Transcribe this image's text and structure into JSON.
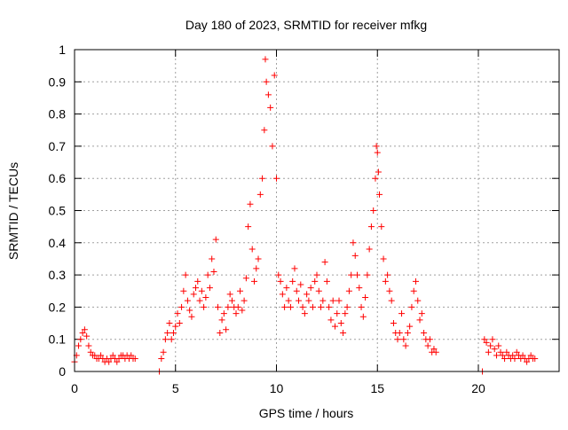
{
  "chart_data": {
    "type": "scatter",
    "title": "Day 180 of 2023, SRMTID for receiver mfkg",
    "xlabel": "GPS time / hours",
    "ylabel": "SRMTID / TECUs",
    "xlim": [
      0,
      24
    ],
    "ylim": [
      0,
      1
    ],
    "x_ticks": [
      0,
      5,
      10,
      15,
      20
    ],
    "x_tick_labels": [
      "0",
      "5",
      "10",
      "15",
      "20"
    ],
    "y_ticks": [
      0,
      0.1,
      0.2,
      0.3,
      0.4,
      0.5,
      0.6,
      0.7,
      0.8,
      0.9,
      1
    ],
    "y_tick_labels": [
      "0",
      "0.1",
      "0.2",
      "0.3",
      "0.4",
      "0.5",
      "0.6",
      "0.7",
      "0.8",
      "0.9",
      "1"
    ],
    "grid": true,
    "marker": "+",
    "marker_color": "#ff0000",
    "series": [
      {
        "name": "SRMTID",
        "points": [
          [
            0.0,
            0.03
          ],
          [
            0.1,
            0.05
          ],
          [
            0.2,
            0.08
          ],
          [
            0.3,
            0.1
          ],
          [
            0.4,
            0.12
          ],
          [
            0.5,
            0.13
          ],
          [
            0.6,
            0.11
          ],
          [
            0.7,
            0.08
          ],
          [
            0.8,
            0.06
          ],
          [
            0.9,
            0.05
          ],
          [
            1.0,
            0.05
          ],
          [
            1.1,
            0.04
          ],
          [
            1.2,
            0.04
          ],
          [
            1.3,
            0.05
          ],
          [
            1.4,
            0.04
          ],
          [
            1.5,
            0.03
          ],
          [
            1.6,
            0.04
          ],
          [
            1.7,
            0.03
          ],
          [
            1.8,
            0.04
          ],
          [
            1.9,
            0.05
          ],
          [
            2.0,
            0.04
          ],
          [
            2.1,
            0.03
          ],
          [
            2.2,
            0.04
          ],
          [
            2.3,
            0.05
          ],
          [
            2.4,
            0.05
          ],
          [
            2.5,
            0.04
          ],
          [
            2.6,
            0.05
          ],
          [
            2.7,
            0.04
          ],
          [
            2.8,
            0.05
          ],
          [
            2.9,
            0.04
          ],
          [
            3.0,
            0.04
          ],
          [
            4.2,
            0.0
          ],
          [
            4.3,
            0.04
          ],
          [
            4.4,
            0.06
          ],
          [
            4.5,
            0.1
          ],
          [
            4.6,
            0.12
          ],
          [
            4.7,
            0.15
          ],
          [
            4.8,
            0.1
          ],
          [
            4.9,
            0.12
          ],
          [
            5.0,
            0.14
          ],
          [
            5.1,
            0.18
          ],
          [
            5.2,
            0.15
          ],
          [
            5.3,
            0.2
          ],
          [
            5.4,
            0.25
          ],
          [
            5.5,
            0.3
          ],
          [
            5.6,
            0.22
          ],
          [
            5.7,
            0.19
          ],
          [
            5.8,
            0.17
          ],
          [
            5.9,
            0.24
          ],
          [
            6.0,
            0.26
          ],
          [
            6.1,
            0.28
          ],
          [
            6.2,
            0.22
          ],
          [
            6.3,
            0.25
          ],
          [
            6.4,
            0.2
          ],
          [
            6.5,
            0.23
          ],
          [
            6.6,
            0.3
          ],
          [
            6.7,
            0.26
          ],
          [
            6.8,
            0.35
          ],
          [
            6.9,
            0.31
          ],
          [
            7.0,
            0.41
          ],
          [
            7.1,
            0.2
          ],
          [
            7.2,
            0.12
          ],
          [
            7.3,
            0.16
          ],
          [
            7.4,
            0.18
          ],
          [
            7.5,
            0.13
          ],
          [
            7.6,
            0.2
          ],
          [
            7.7,
            0.24
          ],
          [
            7.8,
            0.22
          ],
          [
            7.9,
            0.2
          ],
          [
            8.0,
            0.18
          ],
          [
            8.1,
            0.2
          ],
          [
            8.2,
            0.25
          ],
          [
            8.3,
            0.19
          ],
          [
            8.4,
            0.22
          ],
          [
            8.5,
            0.29
          ],
          [
            8.6,
            0.45
          ],
          [
            8.7,
            0.52
          ],
          [
            8.8,
            0.38
          ],
          [
            8.9,
            0.28
          ],
          [
            9.0,
            0.32
          ],
          [
            9.1,
            0.35
          ],
          [
            9.2,
            0.55
          ],
          [
            9.3,
            0.6
          ],
          [
            9.4,
            0.75
          ],
          [
            9.45,
            0.97
          ],
          [
            9.5,
            0.9
          ],
          [
            9.6,
            0.86
          ],
          [
            9.7,
            0.82
          ],
          [
            9.8,
            0.7
          ],
          [
            9.9,
            0.92
          ],
          [
            10.0,
            0.6
          ],
          [
            10.1,
            0.3
          ],
          [
            10.2,
            0.28
          ],
          [
            10.3,
            0.24
          ],
          [
            10.4,
            0.2
          ],
          [
            10.5,
            0.26
          ],
          [
            10.6,
            0.22
          ],
          [
            10.7,
            0.2
          ],
          [
            10.8,
            0.28
          ],
          [
            10.9,
            0.32
          ],
          [
            11.0,
            0.25
          ],
          [
            11.1,
            0.22
          ],
          [
            11.2,
            0.27
          ],
          [
            11.3,
            0.2
          ],
          [
            11.4,
            0.18
          ],
          [
            11.5,
            0.24
          ],
          [
            11.6,
            0.22
          ],
          [
            11.7,
            0.26
          ],
          [
            11.8,
            0.2
          ],
          [
            11.9,
            0.28
          ],
          [
            12.0,
            0.3
          ],
          [
            12.1,
            0.25
          ],
          [
            12.2,
            0.2
          ],
          [
            12.3,
            0.22
          ],
          [
            12.4,
            0.34
          ],
          [
            12.5,
            0.28
          ],
          [
            12.6,
            0.2
          ],
          [
            12.7,
            0.16
          ],
          [
            12.8,
            0.22
          ],
          [
            12.9,
            0.14
          ],
          [
            13.0,
            0.18
          ],
          [
            13.1,
            0.22
          ],
          [
            13.2,
            0.15
          ],
          [
            13.3,
            0.12
          ],
          [
            13.4,
            0.18
          ],
          [
            13.5,
            0.2
          ],
          [
            13.6,
            0.25
          ],
          [
            13.7,
            0.3
          ],
          [
            13.8,
            0.4
          ],
          [
            13.9,
            0.36
          ],
          [
            14.0,
            0.3
          ],
          [
            14.1,
            0.26
          ],
          [
            14.2,
            0.2
          ],
          [
            14.3,
            0.17
          ],
          [
            14.4,
            0.23
          ],
          [
            14.5,
            0.3
          ],
          [
            14.6,
            0.38
          ],
          [
            14.7,
            0.45
          ],
          [
            14.8,
            0.5
          ],
          [
            14.9,
            0.6
          ],
          [
            14.95,
            0.7
          ],
          [
            15.0,
            0.68
          ],
          [
            15.05,
            0.62
          ],
          [
            15.1,
            0.55
          ],
          [
            15.2,
            0.45
          ],
          [
            15.3,
            0.35
          ],
          [
            15.4,
            0.28
          ],
          [
            15.5,
            0.3
          ],
          [
            15.6,
            0.25
          ],
          [
            15.7,
            0.22
          ],
          [
            15.8,
            0.15
          ],
          [
            15.9,
            0.12
          ],
          [
            16.0,
            0.1
          ],
          [
            16.1,
            0.12
          ],
          [
            16.2,
            0.18
          ],
          [
            16.3,
            0.1
          ],
          [
            16.4,
            0.08
          ],
          [
            16.5,
            0.12
          ],
          [
            16.6,
            0.14
          ],
          [
            16.7,
            0.2
          ],
          [
            16.8,
            0.25
          ],
          [
            16.9,
            0.28
          ],
          [
            17.0,
            0.22
          ],
          [
            17.1,
            0.16
          ],
          [
            17.2,
            0.18
          ],
          [
            17.3,
            0.12
          ],
          [
            17.4,
            0.1
          ],
          [
            17.5,
            0.08
          ],
          [
            17.6,
            0.1
          ],
          [
            17.7,
            0.06
          ],
          [
            17.8,
            0.07
          ],
          [
            17.9,
            0.06
          ],
          [
            20.2,
            0.0
          ],
          [
            20.3,
            0.1
          ],
          [
            20.4,
            0.09
          ],
          [
            20.5,
            0.06
          ],
          [
            20.6,
            0.08
          ],
          [
            20.7,
            0.1
          ],
          [
            20.8,
            0.07
          ],
          [
            20.9,
            0.05
          ],
          [
            21.0,
            0.08
          ],
          [
            21.1,
            0.06
          ],
          [
            21.2,
            0.05
          ],
          [
            21.3,
            0.04
          ],
          [
            21.4,
            0.06
          ],
          [
            21.5,
            0.05
          ],
          [
            21.6,
            0.04
          ],
          [
            21.7,
            0.05
          ],
          [
            21.8,
            0.04
          ],
          [
            21.9,
            0.06
          ],
          [
            22.0,
            0.05
          ],
          [
            22.1,
            0.04
          ],
          [
            22.2,
            0.05
          ],
          [
            22.3,
            0.04
          ],
          [
            22.4,
            0.03
          ],
          [
            22.5,
            0.04
          ],
          [
            22.6,
            0.05
          ],
          [
            22.7,
            0.04
          ],
          [
            22.8,
            0.04
          ]
        ]
      }
    ]
  }
}
